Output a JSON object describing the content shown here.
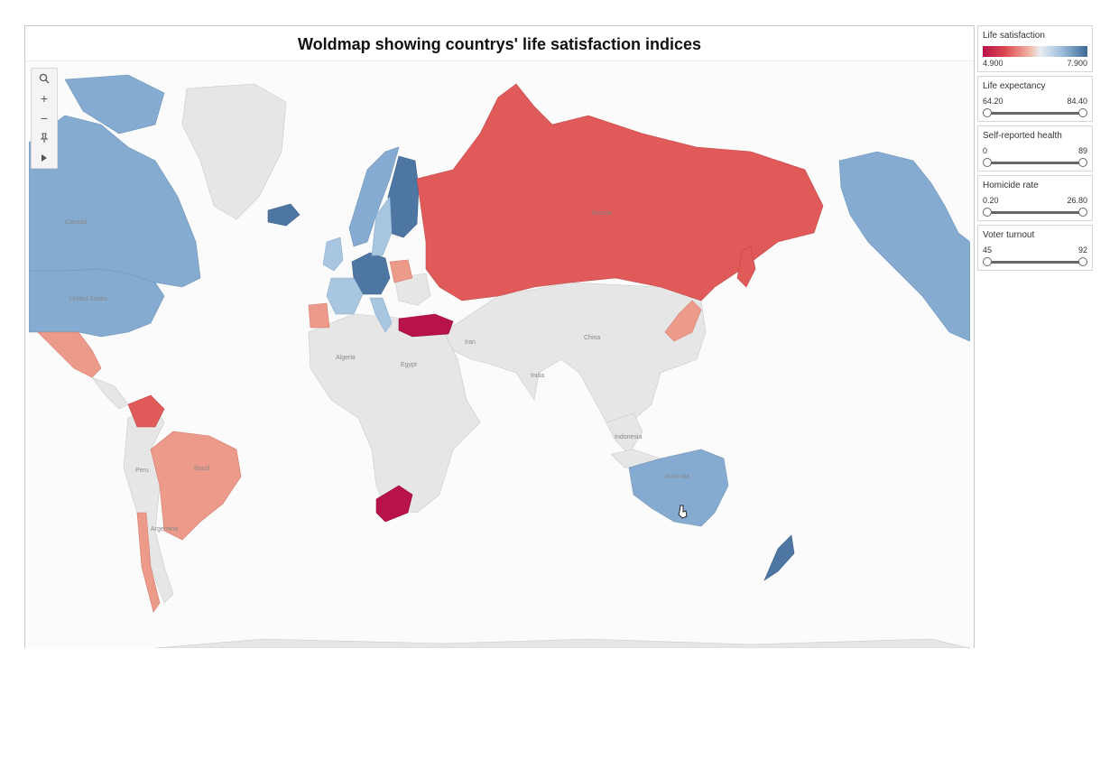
{
  "title": "Woldmap showing countrys' life satisfaction indices",
  "map_labels": {
    "algeria": "Algeria",
    "egypt": "Egypt",
    "iran": "Iran",
    "china": "China",
    "india": "India",
    "indonesia": "Indonesia",
    "peru": "Peru",
    "argentina": "Argentina",
    "russia": "Russia",
    "canada": "Canada",
    "usa": "United States",
    "brazil": "Brazil",
    "australia": "Australia"
  },
  "legend": {
    "life_satisfaction": {
      "label": "Life satisfaction",
      "min": "4.900",
      "max": "7.900",
      "min_color": "#b8124a",
      "max_color": "#3c6a96"
    },
    "life_expectancy": {
      "label": "Life expectancy",
      "min": "64.20",
      "max": "84.40"
    },
    "self_reported_health": {
      "label": "Self-reported health",
      "min": "0",
      "max": "89"
    },
    "homicide_rate": {
      "label": "Homicide rate",
      "min": "0.20",
      "max": "26.80"
    },
    "voter_turnout": {
      "label": "Voter turnout",
      "min": "45",
      "max": "92"
    }
  },
  "colors": {
    "no_data": "#e4e4e4",
    "ocean": "#fbfbfb",
    "very_low": "#b8124a",
    "low": "#e05a5a",
    "mid_low": "#ec9a8a",
    "light_pink": "#f2c0b4",
    "light_blue": "#a9c6e0",
    "mid_blue": "#86abd0",
    "high": "#4d77a2"
  },
  "tools": {
    "search": "search-icon",
    "zoom_in": "plus-icon",
    "zoom_out": "minus-icon",
    "pin": "pin-icon",
    "expand": "play-arrow-icon"
  }
}
